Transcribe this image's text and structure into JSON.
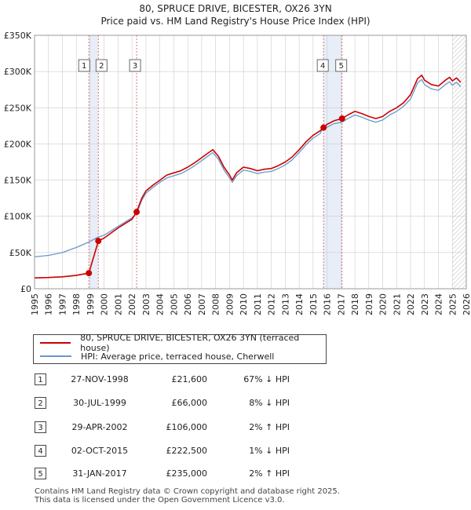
{
  "header": {
    "title_line1": "80, SPRUCE DRIVE, BICESTER, OX26 3YN",
    "title_line2": "Price paid vs. HM Land Registry's House Price Index (HPI)"
  },
  "colors": {
    "property_line": "#cc0000",
    "hpi_line": "#6699cc",
    "marker": "#cc0000",
    "vline": "#dd6666",
    "shade": "#e8eef8",
    "hatch": "#bbbbbb",
    "grid": "#cccccc"
  },
  "legend": {
    "property_label": "80, SPRUCE DRIVE, BICESTER, OX26 3YN (terraced house)",
    "hpi_label": "HPI: Average price, terraced house, Cherwell"
  },
  "sales": [
    {
      "num": "1",
      "date": "27-NOV-1998",
      "price": "£21,600",
      "hpi": "67% ↓ HPI"
    },
    {
      "num": "2",
      "date": "30-JUL-1999",
      "price": "£66,000",
      "hpi": "8% ↓ HPI"
    },
    {
      "num": "3",
      "date": "29-APR-2002",
      "price": "£106,000",
      "hpi": "2% ↑ HPI"
    },
    {
      "num": "4",
      "date": "02-OCT-2015",
      "price": "£222,500",
      "hpi": "1% ↓ HPI"
    },
    {
      "num": "5",
      "date": "31-JAN-2017",
      "price": "£235,000",
      "hpi": "2% ↑ HPI"
    }
  ],
  "footer": {
    "line1": "Contains HM Land Registry data © Crown copyright and database right 2025.",
    "line2": "This data is licensed under the Open Government Licence v3.0."
  },
  "chart_data": {
    "type": "line",
    "title": "80, SPRUCE DRIVE, BICESTER, OX26 3YN",
    "subtitle": "Price paid vs. HM Land Registry's House Price Index (HPI)",
    "xlabel": "",
    "ylabel": "",
    "xlim": [
      1995,
      2026
    ],
    "ylim": [
      0,
      350000
    ],
    "grid": true,
    "legend_position": "bottom-left",
    "x_ticks": [
      1995,
      1996,
      1997,
      1998,
      1999,
      2000,
      2001,
      2002,
      2003,
      2004,
      2005,
      2006,
      2007,
      2008,
      2009,
      2010,
      2011,
      2012,
      2013,
      2014,
      2015,
      2016,
      2017,
      2018,
      2019,
      2020,
      2021,
      2022,
      2023,
      2024,
      2025,
      2026
    ],
    "x_tick_labels": [
      "1995",
      "1996",
      "1997",
      "1998",
      "1999",
      "2000",
      "2001",
      "2002",
      "2003",
      "2004",
      "2005",
      "2006",
      "2007",
      "2008",
      "2009",
      "2010",
      "2011",
      "2012",
      "2013",
      "2014",
      "2015",
      "2016",
      "2017",
      "2018",
      "2019",
      "2020",
      "2021",
      "2022",
      "2023",
      "2024",
      "2025",
      "2026"
    ],
    "y_ticks": [
      0,
      50000,
      100000,
      150000,
      200000,
      250000,
      300000,
      350000
    ],
    "y_tick_labels": [
      "£0",
      "£50K",
      "£100K",
      "£150K",
      "£200K",
      "£250K",
      "£300K",
      "£350K"
    ],
    "forecast_start": 2025.0,
    "series": [
      {
        "name": "80, SPRUCE DRIVE, BICESTER, OX26 3YN (terraced house)",
        "x": [
          1995.0,
          1996.0,
          1997.0,
          1998.0,
          1998.9,
          1999.58,
          2000.0,
          2000.5,
          2001.0,
          2001.5,
          2002.0,
          2002.33,
          2002.7,
          2003.0,
          2003.5,
          2004.0,
          2004.5,
          2005.0,
          2005.5,
          2006.0,
          2006.5,
          2007.0,
          2007.5,
          2007.8,
          2008.2,
          2008.6,
          2009.0,
          2009.2,
          2009.5,
          2010.0,
          2010.5,
          2011.0,
          2011.5,
          2012.0,
          2012.5,
          2013.0,
          2013.5,
          2014.0,
          2014.5,
          2015.0,
          2015.5,
          2015.75,
          2016.0,
          2016.5,
          2017.08,
          2017.5,
          2018.0,
          2018.5,
          2019.0,
          2019.5,
          2020.0,
          2020.5,
          2021.0,
          2021.5,
          2022.0,
          2022.5,
          2022.8,
          2023.0,
          2023.5,
          2024.0,
          2024.5,
          2024.8,
          2025.0,
          2025.3,
          2025.6
        ],
        "y": [
          15000,
          15500,
          16500,
          18500,
          21600,
          66000,
          70000,
          77000,
          84000,
          90000,
          96000,
          106000,
          125000,
          135000,
          143000,
          150000,
          157000,
          160000,
          163000,
          168000,
          174000,
          181000,
          188000,
          192000,
          183000,
          168000,
          157000,
          150000,
          160000,
          168000,
          166000,
          163000,
          165000,
          166000,
          170000,
          175000,
          182000,
          192000,
          203000,
          212000,
          218000,
          222500,
          227000,
          232000,
          235000,
          240000,
          245000,
          242000,
          238000,
          235000,
          238000,
          245000,
          250000,
          257000,
          268000,
          290000,
          295000,
          288000,
          282000,
          280000,
          288000,
          292000,
          287000,
          291000,
          285000
        ]
      },
      {
        "name": "HPI: Average price, terraced house, Cherwell",
        "x": [
          1995.0,
          1996.0,
          1997.0,
          1998.0,
          1998.9,
          1999.58,
          2000.0,
          2000.5,
          2001.0,
          2001.5,
          2002.0,
          2002.33,
          2002.7,
          2003.0,
          2003.5,
          2004.0,
          2004.5,
          2005.0,
          2005.5,
          2006.0,
          2006.5,
          2007.0,
          2007.5,
          2007.8,
          2008.2,
          2008.6,
          2009.0,
          2009.2,
          2009.5,
          2010.0,
          2010.5,
          2011.0,
          2011.5,
          2012.0,
          2012.5,
          2013.0,
          2013.5,
          2014.0,
          2014.5,
          2015.0,
          2015.5,
          2015.75,
          2016.0,
          2016.5,
          2017.08,
          2017.5,
          2018.0,
          2018.5,
          2019.0,
          2019.5,
          2020.0,
          2020.5,
          2021.0,
          2021.5,
          2022.0,
          2022.5,
          2022.8,
          2023.0,
          2023.5,
          2024.0,
          2024.5,
          2024.8,
          2025.0,
          2025.3,
          2025.6
        ],
        "y": [
          44000,
          46000,
          50000,
          57000,
          64500,
          71500,
          74000,
          80000,
          86000,
          92000,
          98000,
          104000,
          122000,
          132000,
          140000,
          147000,
          153000,
          156000,
          159000,
          164000,
          170000,
          177000,
          184000,
          188000,
          179000,
          164000,
          153000,
          147000,
          156000,
          164000,
          162000,
          159000,
          161000,
          162000,
          166000,
          171000,
          178000,
          188000,
          199000,
          208000,
          214000,
          224000,
          223000,
          228000,
          230000,
          235000,
          240000,
          237000,
          233000,
          230000,
          233000,
          240000,
          245000,
          252000,
          262000,
          284000,
          289000,
          282000,
          276000,
          274000,
          282000,
          286000,
          281000,
          285000,
          279000
        ]
      }
    ],
    "annotations": [
      {
        "label": "1",
        "x": 1998.9,
        "y": 21600
      },
      {
        "label": "2",
        "x": 1999.58,
        "y": 66000
      },
      {
        "label": "3",
        "x": 2002.33,
        "y": 106000
      },
      {
        "label": "4",
        "x": 2015.75,
        "y": 222500
      },
      {
        "label": "5",
        "x": 2017.08,
        "y": 235000
      }
    ]
  }
}
